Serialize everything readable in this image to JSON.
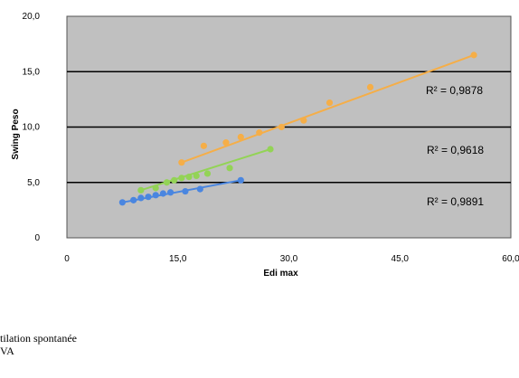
{
  "chart_data": {
    "type": "scatter",
    "xlabel": "Edi max",
    "ylabel": "Swing Peso",
    "xlim": [
      0,
      60
    ],
    "ylim": [
      0,
      20
    ],
    "x_ticks": [
      "0",
      "15,0",
      "30,0",
      "45,0",
      "60,0"
    ],
    "y_ticks": [
      "0",
      "5,0",
      "10,0",
      "15,0",
      "20,0"
    ],
    "grid": "horizontal",
    "plot_background": "#c0c0c0",
    "series": [
      {
        "color": "#f5ae48",
        "points": [
          [
            15.5,
            6.8
          ],
          [
            18.5,
            8.3
          ],
          [
            21.5,
            8.6
          ],
          [
            23.5,
            9.1
          ],
          [
            26,
            9.5
          ],
          [
            29,
            10.0
          ],
          [
            32,
            10.6
          ],
          [
            35.5,
            12.2
          ],
          [
            41,
            13.6
          ],
          [
            55,
            16.5
          ]
        ],
        "trendline": [
          [
            15.5,
            6.8
          ],
          [
            55,
            16.5
          ]
        ],
        "r2_label": "R² = 0,9878"
      },
      {
        "color": "#93d356",
        "points": [
          [
            10,
            4.3
          ],
          [
            12,
            4.5
          ],
          [
            13.5,
            5.0
          ],
          [
            14.5,
            5.2
          ],
          [
            15.5,
            5.4
          ],
          [
            16.5,
            5.5
          ],
          [
            17.5,
            5.6
          ],
          [
            19,
            5.8
          ],
          [
            22,
            6.3
          ],
          [
            27.5,
            8.0
          ]
        ],
        "trendline": [
          [
            10,
            4.3
          ],
          [
            27.5,
            8.0
          ]
        ],
        "r2_label": "R² = 0,9618"
      },
      {
        "color": "#4a86e0",
        "points": [
          [
            7.5,
            3.2
          ],
          [
            9,
            3.4
          ],
          [
            10,
            3.6
          ],
          [
            11,
            3.7
          ],
          [
            12,
            3.85
          ],
          [
            13,
            4.0
          ],
          [
            14,
            4.1
          ],
          [
            16,
            4.2
          ],
          [
            18,
            4.4
          ],
          [
            23.5,
            5.2
          ]
        ],
        "trendline": [
          [
            7.5,
            3.2
          ],
          [
            23.5,
            5.2
          ]
        ],
        "r2_label": "R² = 0,9891"
      }
    ]
  },
  "legend_text": [
    "tilation spontanée",
    "VA"
  ]
}
